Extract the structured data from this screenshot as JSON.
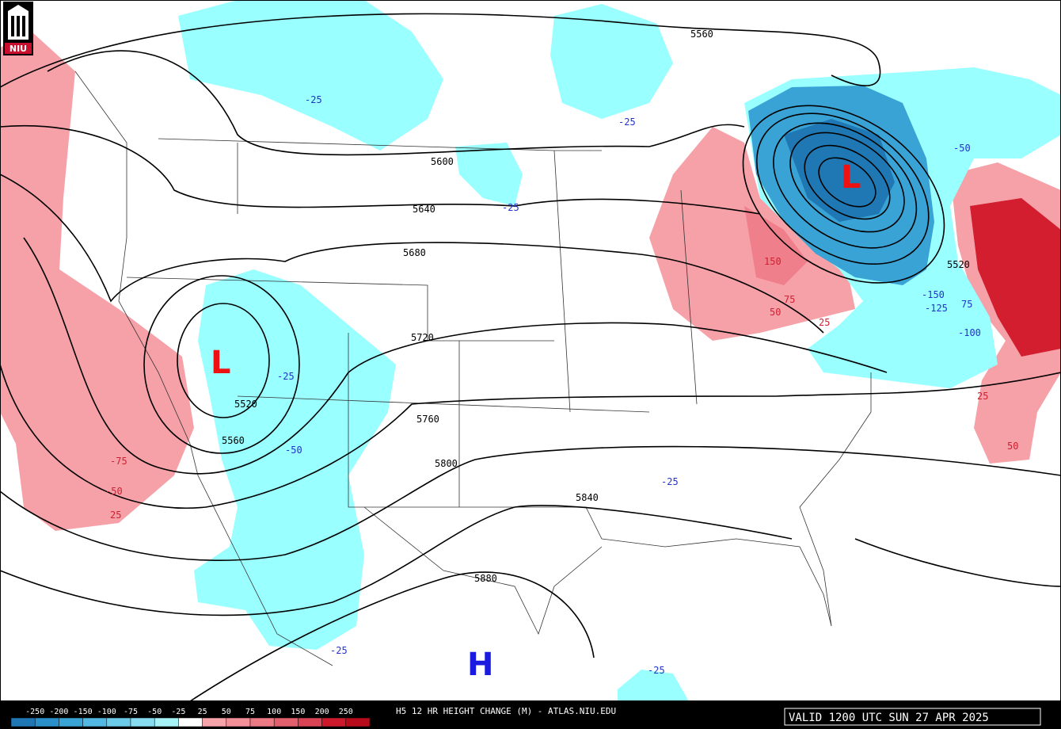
{
  "logo": "NIU",
  "height_labels": [
    "5560",
    "5600",
    "5640",
    "5680",
    "5720",
    "5760",
    "5800",
    "5840",
    "5880",
    "5520",
    "5560",
    "5520"
  ],
  "change_labels": [
    "-25",
    "-25",
    "-25",
    "-25",
    "-50",
    "-25",
    "-25",
    "-25",
    "-75",
    "-50",
    "25",
    "25",
    "50",
    "75",
    "150",
    "-150",
    "-125",
    "-100",
    "75",
    "25",
    "50",
    "-50"
  ],
  "pressure_centers": [
    "L",
    "L",
    "H"
  ],
  "legend": {
    "values": [
      -250,
      -200,
      -150,
      -100,
      -75,
      -50,
      -25,
      25,
      50,
      75,
      100,
      150,
      200,
      250
    ],
    "colors": [
      "#1f78b4",
      "#2b8fc9",
      "#3aa3d6",
      "#52b8e2",
      "#6ccbe9",
      "#88dcef",
      "#a6f2f6",
      "#ffffff",
      "#f7a3aa",
      "#f28f98",
      "#ec7a85",
      "#e2606e",
      "#d94455",
      "#cc1a2c",
      "#b80b1c"
    ]
  },
  "footer": {
    "title": "H5 12 HR HEIGHT CHANGE (M) - ATLAS.NIU.EDU",
    "valid": "VALID 1200 UTC SUN 27 APR 2025"
  }
}
